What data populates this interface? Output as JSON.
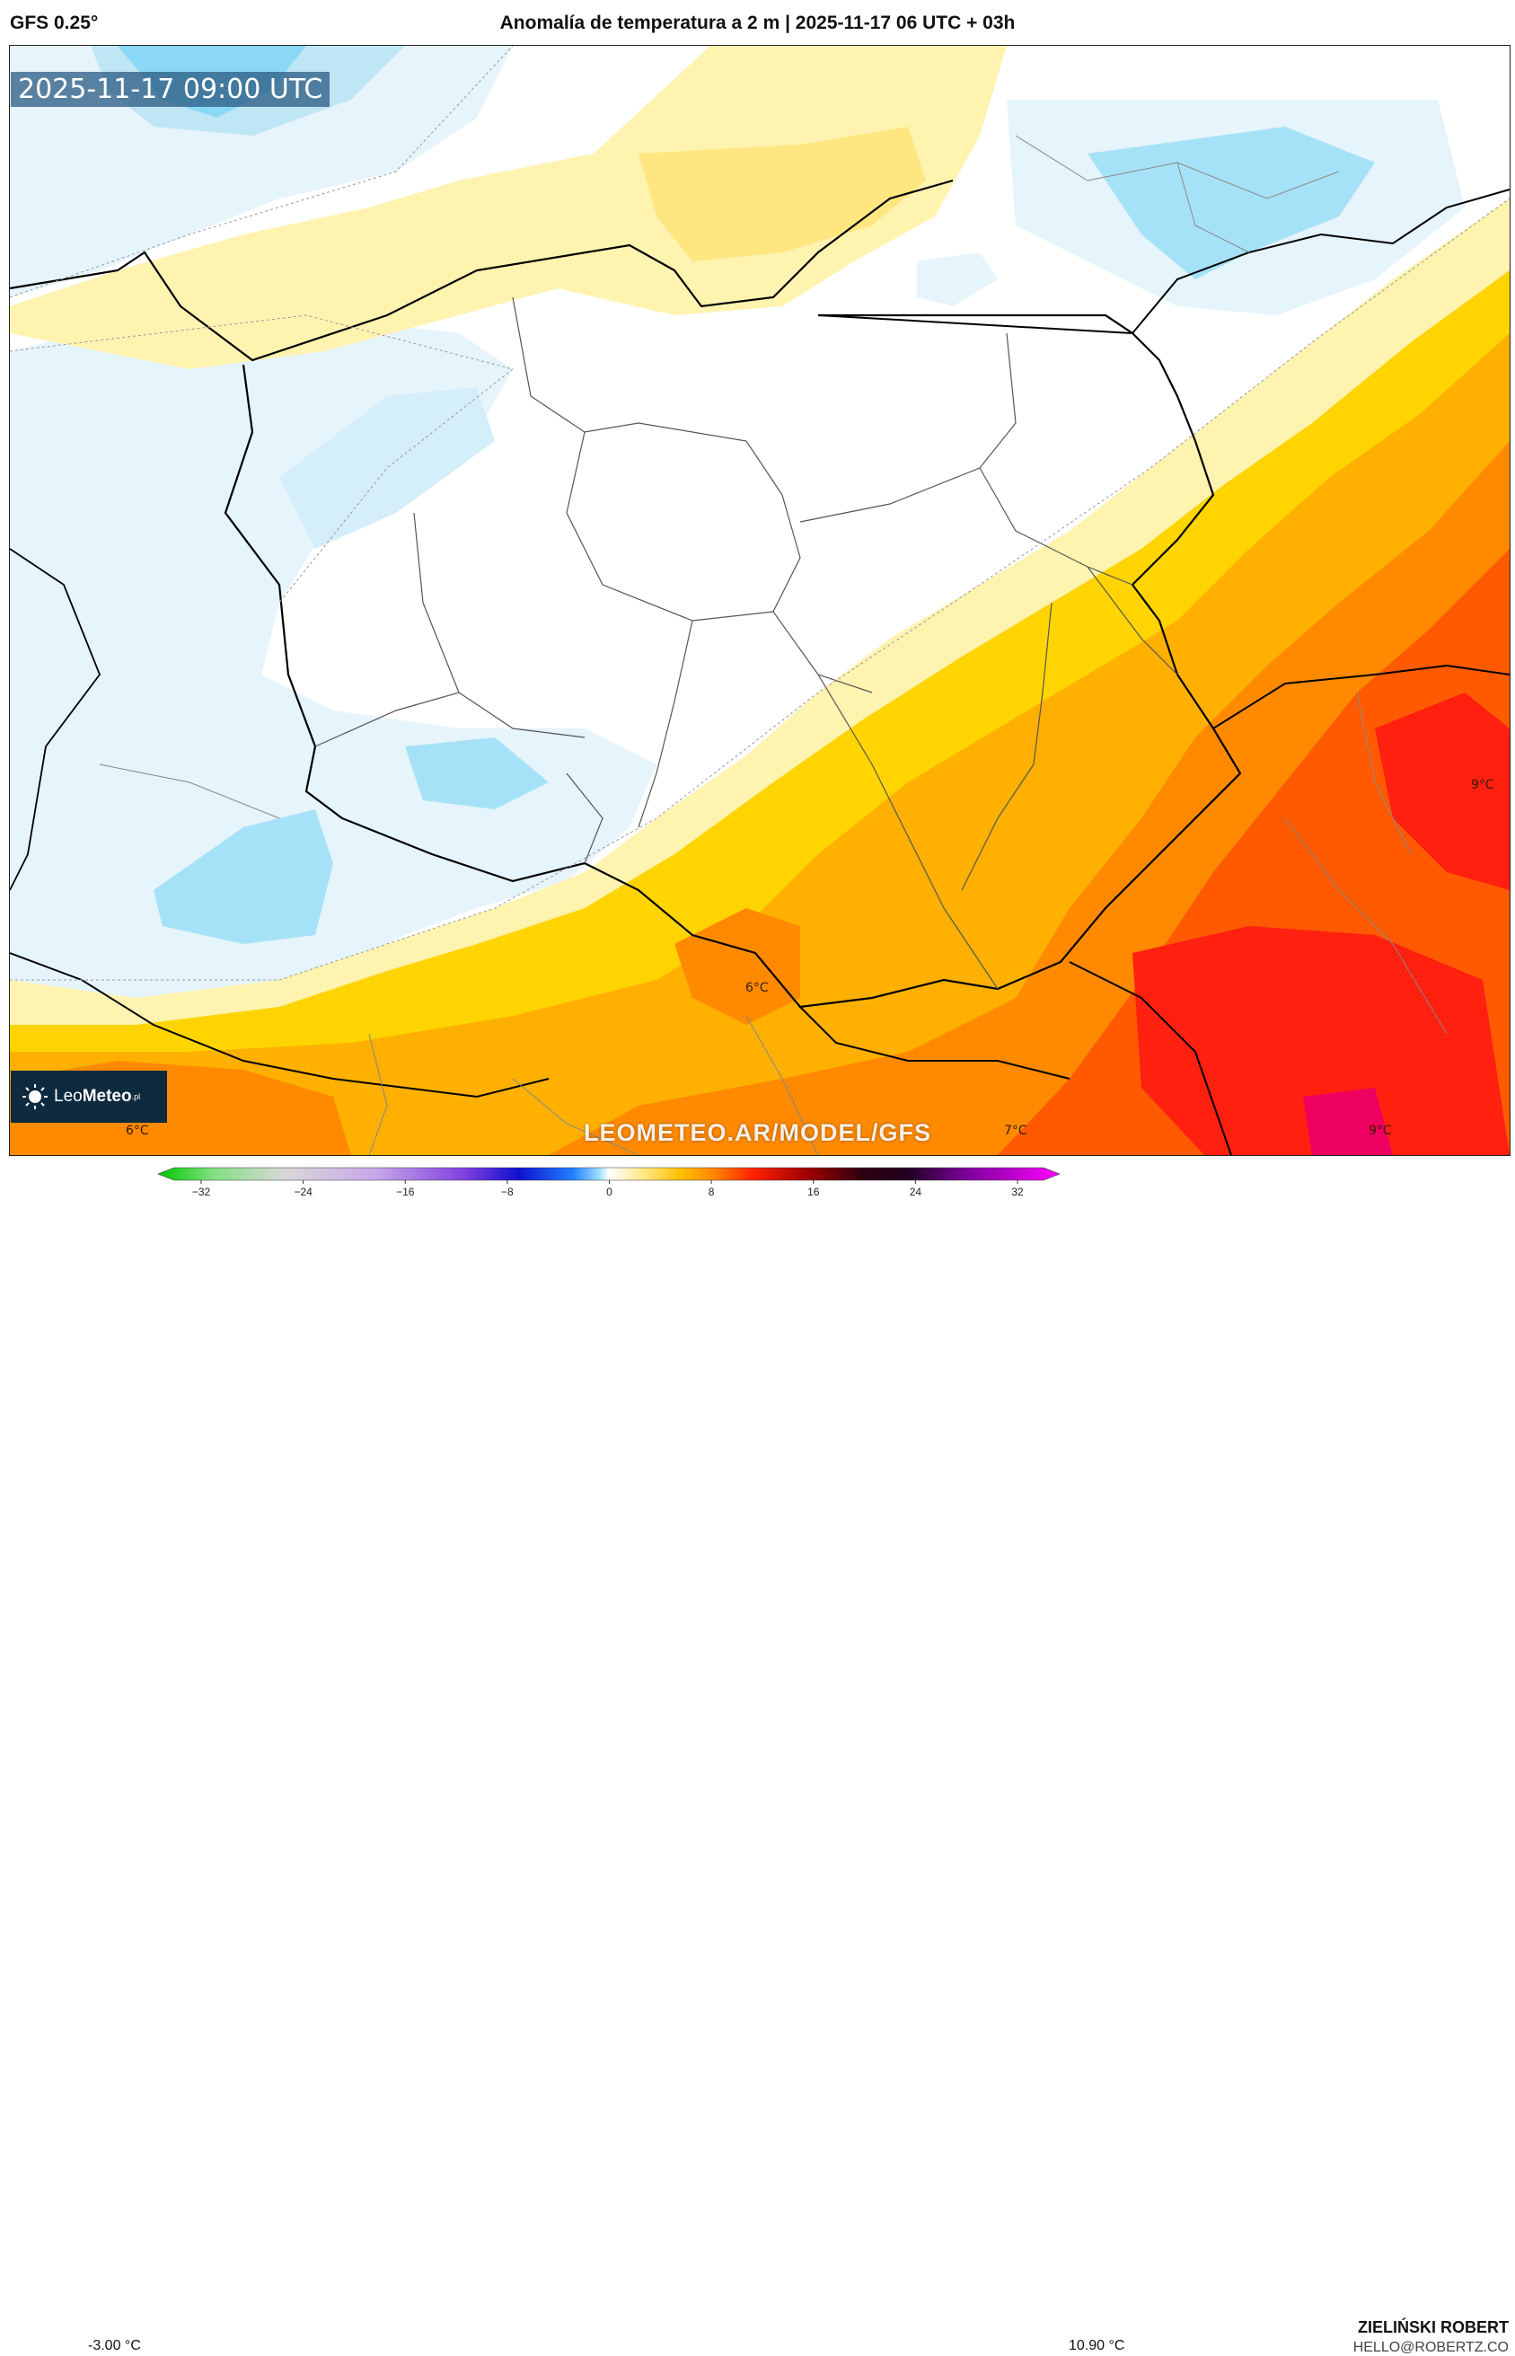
{
  "header": {
    "model": "GFS 0.25°",
    "title": "Anomalía de temperatura a 2 m | 2025-11-17 06 UTC + 03h"
  },
  "map": {
    "valid_time": "2025-11-17 09:00 UTC",
    "watermark": "LEOMETEO.AR/MODEL/GFS",
    "brand": {
      "prefix": "Leo",
      "name": "Meteo",
      "suffix": ".pl"
    },
    "value_labels": [
      "6°C",
      "9°C",
      "6°C",
      "7°C",
      "9°C"
    ]
  },
  "colorbar": {
    "min_value": "-3.00 °C",
    "max_value": "10.90 °C",
    "ticks": [
      "−32",
      "−24",
      "−16",
      "−8",
      "0",
      "8",
      "16",
      "24",
      "32"
    ]
  },
  "footer": {
    "author": "ZIELIŃSKI ROBERT",
    "contact": "HELLO@ROBERTZ.CO"
  },
  "colors": {
    "cold_light": "#e6f4fb",
    "cold_mid": "#bfe6f5",
    "cold_strong": "#8ad8f5",
    "neutral": "#ffffff",
    "warm_pale": "#fff3b0",
    "warm_yellow": "#ffd400",
    "warm_amber": "#ffb000",
    "warm_orange": "#ff8a00",
    "warm_deep": "#ff5a00",
    "warm_red": "#ff2010",
    "warm_hot": "#ee0060",
    "badge": "#285a82",
    "logo_bg": "#0e2a3f"
  }
}
